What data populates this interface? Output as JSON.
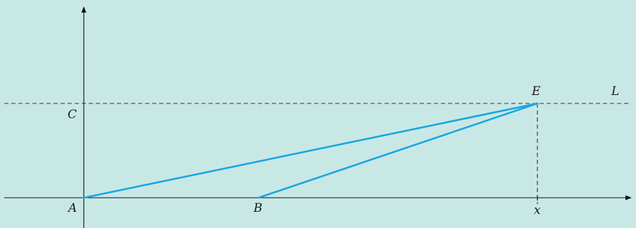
{
  "diagram": {
    "background": "#c8e8e6",
    "segment_color": "#1aa6e0",
    "labels": {
      "A": "A",
      "B": "B",
      "C": "C",
      "E": "E",
      "L": "L",
      "x": "x"
    }
  }
}
